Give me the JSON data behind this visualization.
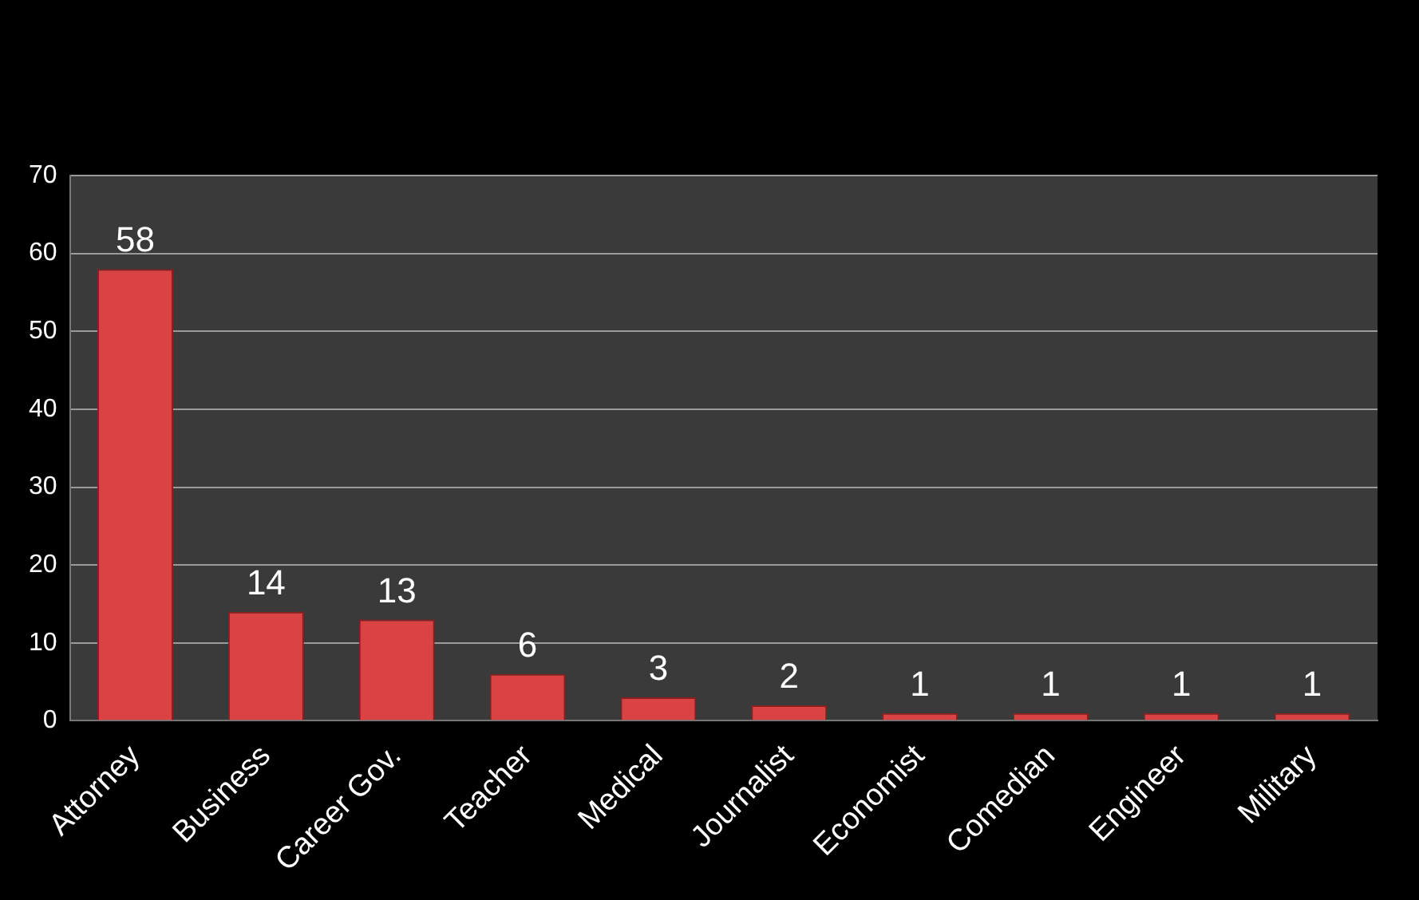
{
  "chart_data": {
    "type": "bar",
    "categories": [
      "Attorney",
      "Business",
      "Career Gov.",
      "Teacher",
      "Medical",
      "Journalist",
      "Economist",
      "Comedian",
      "Engineer",
      "Military"
    ],
    "values": [
      58,
      14,
      13,
      6,
      3,
      2,
      1,
      1,
      1,
      1
    ],
    "color": "#d94343",
    "ylim": [
      0,
      70
    ],
    "yticks": [
      0,
      10,
      20,
      30,
      40,
      50,
      60,
      70
    ],
    "grid": true,
    "data_labels": true
  }
}
